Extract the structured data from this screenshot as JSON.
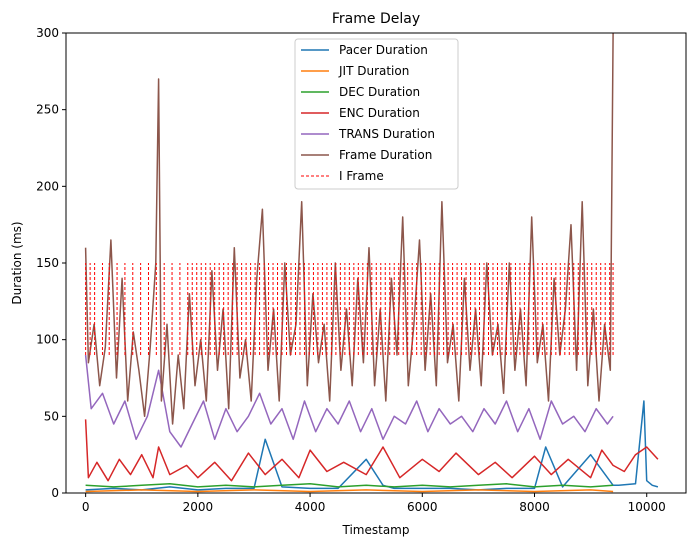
{
  "chart_data": {
    "type": "line",
    "title": "Frame Delay",
    "xlabel": "Timestamp",
    "ylabel": "Duration (ms)",
    "xlim": [
      -350,
      10700
    ],
    "ylim": [
      0,
      300
    ],
    "xticks": [
      0,
      2000,
      4000,
      6000,
      8000,
      10000
    ],
    "yticks": [
      0,
      50,
      100,
      150,
      200,
      250,
      300
    ],
    "grid": false,
    "legend_position": "top-center",
    "series": [
      {
        "name": "Pacer Duration",
        "color": "#1f77b4",
        "x": [
          0,
          500,
          1000,
          1500,
          2000,
          2500,
          3000,
          3200,
          3500,
          4000,
          4500,
          5000,
          5300,
          5500,
          6000,
          6500,
          7000,
          7500,
          8000,
          8200,
          8500,
          9000,
          9400,
          9500,
          9800,
          9950,
          10000,
          10100,
          10200
        ],
        "y": [
          2,
          3,
          2,
          4,
          2,
          3,
          3,
          35,
          4,
          3,
          3,
          22,
          5,
          3,
          3,
          3,
          2,
          3,
          3,
          30,
          4,
          25,
          5,
          5,
          6,
          60,
          8,
          5,
          4
        ]
      },
      {
        "name": "JIT Duration",
        "color": "#ff7f0e",
        "x": [
          0,
          1000,
          2000,
          3000,
          4000,
          5000,
          6000,
          7000,
          8000,
          9000,
          9400
        ],
        "y": [
          1,
          2,
          1,
          2,
          1,
          2,
          1,
          2,
          1,
          2,
          1
        ]
      },
      {
        "name": "DEC Duration",
        "color": "#2ca02c",
        "x": [
          0,
          500,
          1000,
          1500,
          2000,
          2500,
          3000,
          3500,
          4000,
          4500,
          5000,
          5500,
          6000,
          6500,
          7000,
          7500,
          8000,
          8500,
          9000,
          9400
        ],
        "y": [
          5,
          4,
          5,
          6,
          4,
          5,
          4,
          5,
          6,
          4,
          5,
          4,
          5,
          4,
          5,
          6,
          4,
          5,
          4,
          5
        ]
      },
      {
        "name": "ENC Duration",
        "color": "#d62728",
        "x": [
          0,
          50,
          200,
          400,
          600,
          800,
          1000,
          1200,
          1300,
          1500,
          1800,
          2000,
          2300,
          2600,
          2900,
          3200,
          3500,
          3800,
          4000,
          4300,
          4600,
          5000,
          5300,
          5600,
          6000,
          6300,
          6600,
          7000,
          7300,
          7600,
          8000,
          8300,
          8600,
          9000,
          9200,
          9400,
          9600,
          9800,
          10000,
          10200
        ],
        "y": [
          48,
          10,
          20,
          8,
          22,
          12,
          25,
          10,
          30,
          12,
          18,
          10,
          20,
          8,
          26,
          12,
          22,
          10,
          28,
          14,
          20,
          12,
          30,
          10,
          22,
          14,
          26,
          12,
          20,
          10,
          24,
          12,
          22,
          10,
          28,
          18,
          14,
          25,
          30,
          22
        ]
      },
      {
        "name": "TRANS Duration",
        "color": "#9467bd",
        "x": [
          0,
          100,
          300,
          500,
          700,
          900,
          1100,
          1300,
          1500,
          1700,
          1900,
          2100,
          2300,
          2500,
          2700,
          2900,
          3100,
          3300,
          3500,
          3700,
          3900,
          4100,
          4300,
          4500,
          4700,
          4900,
          5100,
          5300,
          5500,
          5700,
          5900,
          6100,
          6300,
          6500,
          6700,
          6900,
          7100,
          7300,
          7500,
          7700,
          7900,
          8100,
          8300,
          8500,
          8700,
          8900,
          9100,
          9300,
          9400
        ],
        "y": [
          90,
          55,
          65,
          45,
          60,
          35,
          50,
          80,
          40,
          30,
          45,
          60,
          35,
          55,
          40,
          50,
          65,
          45,
          55,
          35,
          60,
          40,
          55,
          45,
          60,
          40,
          55,
          35,
          50,
          45,
          60,
          40,
          55,
          45,
          50,
          40,
          55,
          45,
          60,
          40,
          55,
          35,
          60,
          45,
          50,
          40,
          55,
          45,
          50
        ]
      },
      {
        "name": "Frame Duration",
        "color": "#8c564b",
        "x": [
          0,
          50,
          150,
          250,
          350,
          450,
          550,
          650,
          750,
          850,
          950,
          1050,
          1150,
          1250,
          1300,
          1350,
          1450,
          1550,
          1650,
          1750,
          1850,
          1950,
          2050,
          2150,
          2250,
          2350,
          2450,
          2550,
          2650,
          2750,
          2850,
          2950,
          3050,
          3150,
          3250,
          3350,
          3450,
          3550,
          3650,
          3750,
          3850,
          3950,
          4050,
          4150,
          4250,
          4350,
          4450,
          4550,
          4650,
          4750,
          4850,
          4950,
          5050,
          5150,
          5250,
          5350,
          5450,
          5550,
          5650,
          5750,
          5850,
          5950,
          6050,
          6150,
          6250,
          6350,
          6450,
          6550,
          6650,
          6750,
          6850,
          6950,
          7050,
          7150,
          7250,
          7350,
          7450,
          7550,
          7650,
          7750,
          7850,
          7950,
          8050,
          8150,
          8250,
          8350,
          8450,
          8550,
          8650,
          8750,
          8850,
          8950,
          9050,
          9150,
          9250,
          9350,
          9400
        ],
        "y": [
          160,
          85,
          110,
          70,
          95,
          165,
          75,
          140,
          60,
          105,
          80,
          50,
          95,
          150,
          270,
          60,
          110,
          45,
          90,
          55,
          130,
          70,
          100,
          60,
          145,
          80,
          120,
          55,
          160,
          75,
          100,
          60,
          140,
          185,
          80,
          120,
          60,
          150,
          90,
          110,
          190,
          70,
          130,
          85,
          110,
          60,
          150,
          80,
          120,
          70,
          140,
          85,
          160,
          70,
          120,
          60,
          140,
          90,
          180,
          70,
          110,
          165,
          80,
          130,
          70,
          190,
          85,
          110,
          60,
          140,
          80,
          120,
          70,
          150,
          90,
          110,
          65,
          150,
          80,
          120,
          70,
          180,
          85,
          110,
          60,
          140,
          90,
          120,
          175,
          80,
          190,
          70,
          120,
          60,
          110,
          80,
          300
        ]
      },
      {
        "name": "I Frame",
        "color": "#ff0000",
        "style": "dashed",
        "x": [
          0,
          80,
          160,
          300,
          420,
          560,
          700,
          840,
          980,
          1120,
          1260,
          1400,
          1540,
          1680,
          1820,
          1900,
          1980,
          2060,
          2140,
          2220,
          2300,
          2380,
          2460,
          2540,
          2620,
          2700,
          2780,
          2860,
          2940,
          3020,
          3100,
          3180,
          3260,
          3340,
          3420,
          3500,
          3580,
          3660,
          3740,
          3820,
          3900,
          3980,
          4060,
          4140,
          4220,
          4300,
          4380,
          4460,
          4540,
          4620,
          4700,
          4780,
          4860,
          4940,
          5020,
          5100,
          5180,
          5260,
          5340,
          5420,
          5500,
          5580,
          5660,
          5740,
          5820,
          5900,
          5980,
          6060,
          6140,
          6220,
          6300,
          6380,
          6460,
          6540,
          6620,
          6700,
          6780,
          6860,
          6940,
          7020,
          7100,
          7180,
          7260,
          7340,
          7420,
          7500,
          7580,
          7660,
          7740,
          7820,
          7900,
          7980,
          8060,
          8140,
          8220,
          8300,
          8380,
          8460,
          8540,
          8620,
          8700,
          8780,
          8860,
          8940,
          9020,
          9100,
          9180,
          9260,
          9340,
          9400
        ],
        "y_low": 90,
        "y_high": 150
      }
    ]
  }
}
